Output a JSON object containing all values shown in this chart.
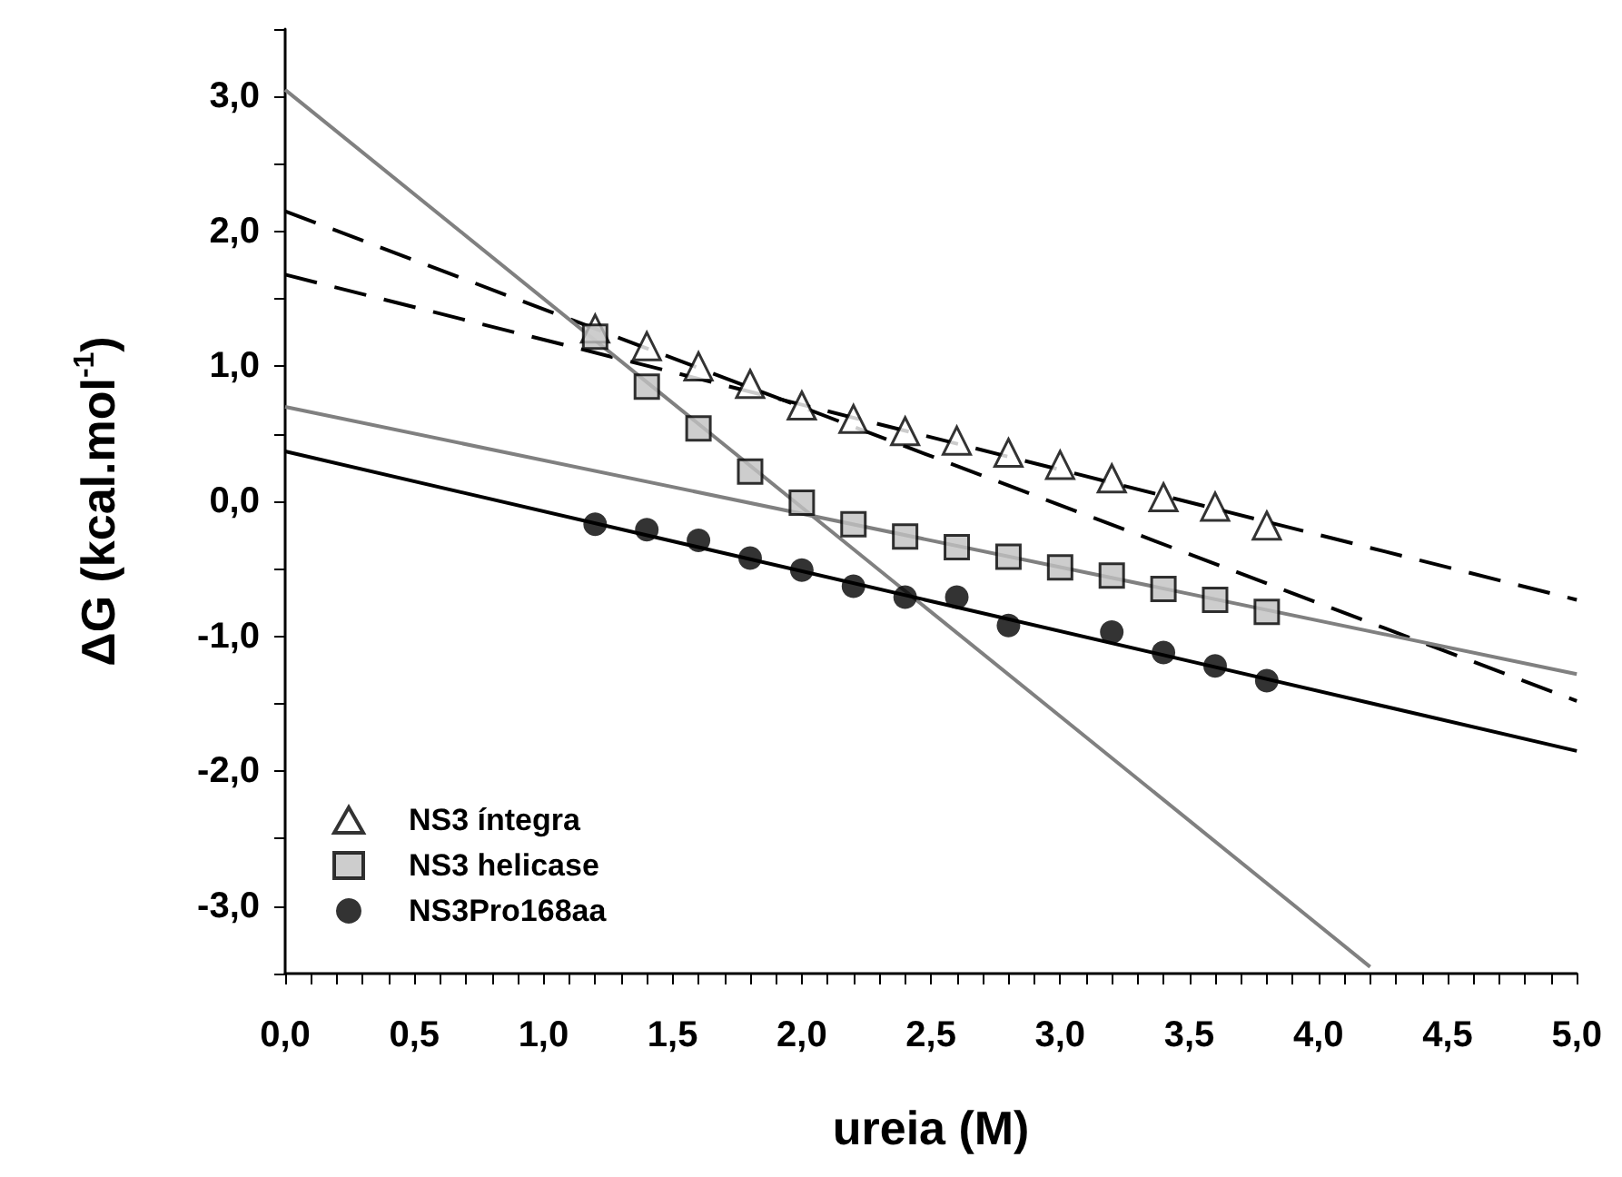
{
  "chart_data": {
    "type": "scatter",
    "xlabel": "ureia (M)",
    "ylabel": "ΔG (kcal.mol$^{-1}$)",
    "xlim": [
      0,
      5
    ],
    "ylim": [
      -3.5,
      3.5
    ],
    "xticks": [
      {
        "value": 0,
        "label": "0,0"
      },
      {
        "value": 0.1,
        "label": null
      },
      {
        "value": 0.2,
        "label": null
      },
      {
        "value": 0.3,
        "label": null
      },
      {
        "value": 0.4,
        "label": null
      },
      {
        "value": 0.5,
        "label": "0,5"
      },
      {
        "value": 0.6,
        "label": null
      },
      {
        "value": 0.7,
        "label": null
      },
      {
        "value": 0.8,
        "label": null
      },
      {
        "value": 0.9,
        "label": null
      },
      {
        "value": 1,
        "label": "1,0"
      },
      {
        "value": 1.1,
        "label": null
      },
      {
        "value": 1.2,
        "label": null
      },
      {
        "value": 1.3,
        "label": null
      },
      {
        "value": 1.4,
        "label": null
      },
      {
        "value": 1.5,
        "label": "1,5"
      },
      {
        "value": 1.6,
        "label": null
      },
      {
        "value": 1.7,
        "label": null
      },
      {
        "value": 1.8,
        "label": null
      },
      {
        "value": 1.9,
        "label": null
      },
      {
        "value": 2,
        "label": "2,0"
      },
      {
        "value": 2.1,
        "label": null
      },
      {
        "value": 2.2,
        "label": null
      },
      {
        "value": 2.3,
        "label": null
      },
      {
        "value": 2.4,
        "label": null
      },
      {
        "value": 2.5,
        "label": "2,5"
      },
      {
        "value": 2.6,
        "label": null
      },
      {
        "value": 2.7,
        "label": null
      },
      {
        "value": 2.8,
        "label": null
      },
      {
        "value": 2.9,
        "label": null
      },
      {
        "value": 3,
        "label": "3,0"
      },
      {
        "value": 3.1,
        "label": null
      },
      {
        "value": 3.2,
        "label": null
      },
      {
        "value": 3.3,
        "label": null
      },
      {
        "value": 3.4,
        "label": null
      },
      {
        "value": 3.5,
        "label": "3,5"
      },
      {
        "value": 3.6,
        "label": null
      },
      {
        "value": 3.7,
        "label": null
      },
      {
        "value": 3.8,
        "label": null
      },
      {
        "value": 3.9,
        "label": null
      },
      {
        "value": 4,
        "label": "4,0"
      },
      {
        "value": 4.1,
        "label": null
      },
      {
        "value": 4.2,
        "label": null
      },
      {
        "value": 4.3,
        "label": null
      },
      {
        "value": 4.4,
        "label": null
      },
      {
        "value": 4.5,
        "label": "4,5"
      },
      {
        "value": 4.6,
        "label": null
      },
      {
        "value": 4.7,
        "label": null
      },
      {
        "value": 4.8,
        "label": null
      },
      {
        "value": 4.9,
        "label": null
      },
      {
        "value": 5,
        "label": "5,0"
      }
    ],
    "yticks": [
      {
        "value": -3.5,
        "label": null
      },
      {
        "value": -3,
        "label": "-3,0"
      },
      {
        "value": -2.5,
        "label": null
      },
      {
        "value": -2,
        "label": "-2,0"
      },
      {
        "value": -1.5,
        "label": null
      },
      {
        "value": -1,
        "label": "-1,0"
      },
      {
        "value": -0.5,
        "label": null
      },
      {
        "value": 0,
        "label": "0,0"
      },
      {
        "value": 0.5,
        "label": null
      },
      {
        "value": 1,
        "label": "1,0"
      },
      {
        "value": 1.5,
        "label": null
      },
      {
        "value": 2,
        "label": "2,0"
      },
      {
        "value": 2.5,
        "label": null
      },
      {
        "value": 3,
        "label": "3,0"
      },
      {
        "value": 3.5,
        "label": null
      }
    ],
    "grid": false,
    "legend": "bottom left",
    "series": [
      {
        "name": "NS3 íntegra",
        "marker": "triangle",
        "color": "#ffffff",
        "x": [
          1.2,
          1.4,
          1.6,
          1.8,
          2.0,
          2.2,
          2.4,
          2.6,
          2.8,
          3.0,
          3.2,
          3.4,
          3.6,
          3.8
        ],
        "values": [
          1.28,
          1.15,
          1.0,
          0.87,
          0.71,
          0.61,
          0.52,
          0.45,
          0.36,
          0.27,
          0.17,
          0.03,
          -0.04,
          -0.18
        ]
      },
      {
        "name": "NS3 helicase",
        "marker": "square",
        "color": "#c0c0c0",
        "x": [
          1.2,
          1.4,
          1.6,
          1.8,
          2.0,
          2.2,
          2.4,
          2.6,
          2.8,
          3.0,
          3.2,
          3.4,
          3.6,
          3.8
        ],
        "values": [
          1.22,
          0.85,
          0.54,
          0.22,
          -0.01,
          -0.17,
          -0.26,
          -0.34,
          -0.41,
          -0.49,
          -0.55,
          -0.65,
          -0.73,
          -0.82
        ]
      },
      {
        "name": "NS3Pro168aa",
        "marker": "circle",
        "color": "#000000",
        "x": [
          1.2,
          1.4,
          1.6,
          1.8,
          2.0,
          2.2,
          2.4,
          2.6,
          2.8,
          3.2,
          3.4,
          3.6,
          3.8
        ],
        "values": [
          -0.17,
          -0.21,
          -0.29,
          -0.42,
          -0.51,
          -0.63,
          -0.71,
          -0.71,
          -0.92,
          -0.97,
          -1.12,
          -1.22,
          -1.33
        ]
      },
      {
        "type": "line",
        "line_style": "dashed",
        "marker": "none",
        "color": "#000000",
        "x": [
          0,
          5
        ],
        "values": [
          1.68,
          -0.73
        ]
      },
      {
        "type": "line",
        "line_style": "dashed",
        "marker": "none",
        "color": "#000000",
        "x": [
          0,
          5
        ],
        "values": [
          2.15,
          -1.48
        ]
      },
      {
        "type": "line",
        "line_style": "solid",
        "marker": "none",
        "color": "#808080",
        "x": [
          0,
          4.2
        ],
        "values": [
          3.05,
          -3.45
        ]
      },
      {
        "type": "line",
        "line_style": "solid",
        "marker": "none",
        "color": "#808080",
        "x": [
          0,
          5
        ],
        "values": [
          0.7,
          -1.28
        ]
      },
      {
        "type": "line",
        "line_style": "solid",
        "marker": "none",
        "color": "#000000",
        "x": [
          0,
          5
        ],
        "values": [
          0.37,
          -1.85
        ]
      }
    ]
  }
}
